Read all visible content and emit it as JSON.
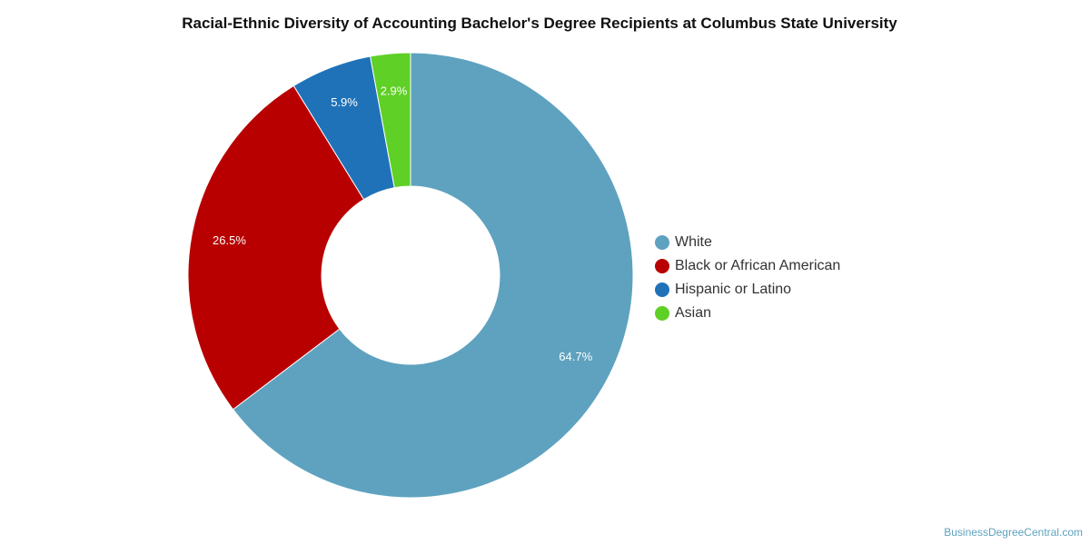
{
  "chart_data": {
    "type": "pie",
    "title": "Racial-Ethnic Diversity of Accounting Bachelor's Degree Recipients at Columbus State University",
    "donut": true,
    "categories": [
      "White",
      "Black or African American",
      "Hispanic or Latino",
      "Asian"
    ],
    "values": [
      64.7,
      26.5,
      5.9,
      2.9
    ],
    "data_labels": [
      "64.7%",
      "26.5%",
      "5.9%",
      "2.9%"
    ],
    "colors": [
      "#5ea2bf",
      "#b80000",
      "#1f72b8",
      "#5fd025"
    ],
    "legend_position": "right"
  },
  "source": "BusinessDegreeCentral.com"
}
